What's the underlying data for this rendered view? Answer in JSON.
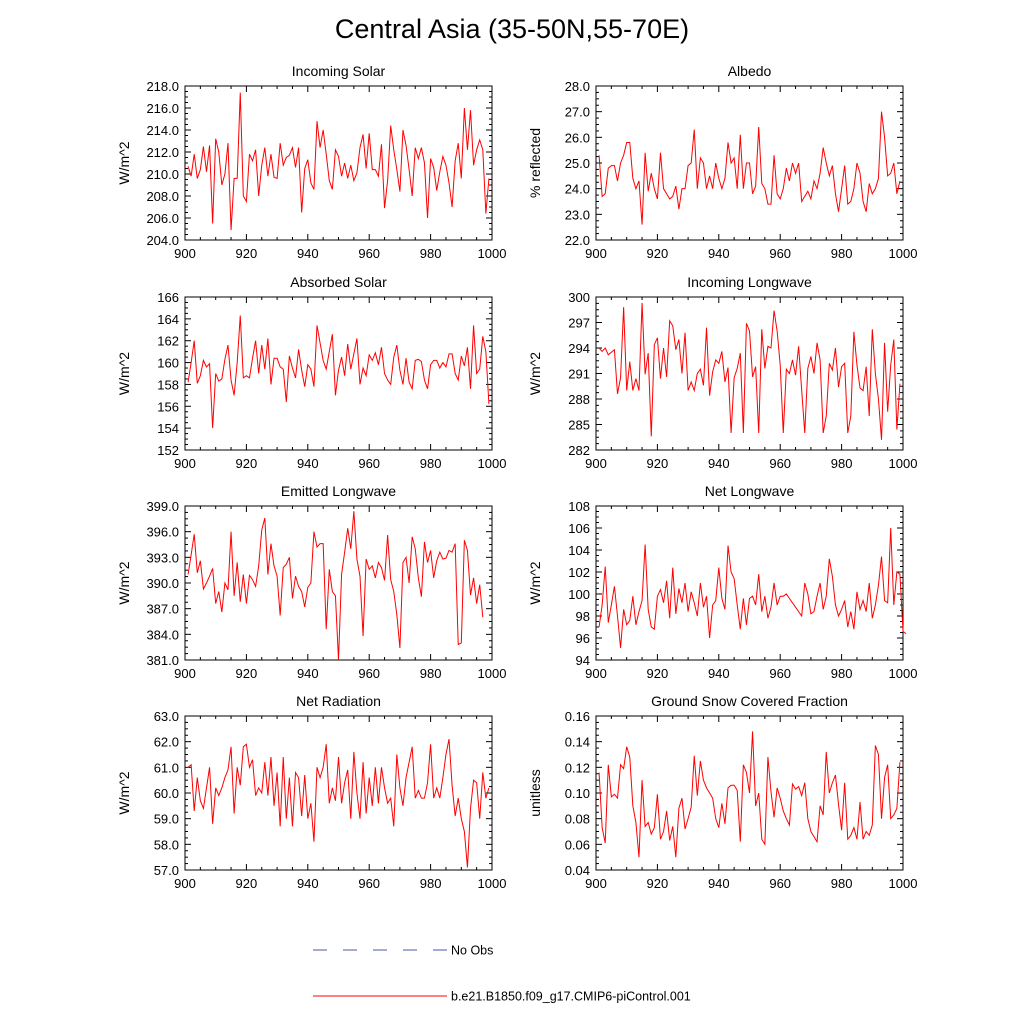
{
  "title": "Central Asia (35-50N,55-70E)",
  "legend": {
    "no_obs": "No Obs",
    "model": "b.e21.B1850.f09_g17.CMIP6-piControl.001",
    "obs_color": "#4a5aa8",
    "model_color": "#ff0000"
  },
  "chart_data": [
    {
      "type": "line",
      "title": "Incoming Solar",
      "ylabel": "W/m^2",
      "xlim": [
        900,
        1000
      ],
      "xticks": [
        "900",
        "920",
        "940",
        "960",
        "980",
        "1000"
      ],
      "ylim": [
        204,
        218
      ],
      "yticks": [
        "204.0",
        "206.0",
        "208.0",
        "210.0",
        "212.0",
        "214.0",
        "216.0",
        "218.0"
      ],
      "x_start": 901,
      "values": [
        210.7,
        209.8,
        211.8,
        209.6,
        210.4,
        212.5,
        210.2,
        212.6,
        205.5,
        213.2,
        212.0,
        209.0,
        210.0,
        212.8,
        204.9,
        209.6,
        209.6,
        217.4,
        208.0,
        207.5,
        211.8,
        211.2,
        212.2,
        208.0,
        210.8,
        212.4,
        209.8,
        211.8,
        209.7,
        209.6,
        212.8,
        210.8,
        211.5,
        211.7,
        212.4,
        210.6,
        212.4,
        206.5,
        210.5,
        211.3,
        209.2,
        208.6,
        214.8,
        212.4,
        214.0,
        211.8,
        209.4,
        208.6,
        212.2,
        211.6,
        209.8,
        211.0,
        209.6,
        210.8,
        209.4,
        210.1,
        212.4,
        213.6,
        210.5,
        213.7,
        210.4,
        210.4,
        209.8,
        212.7,
        206.9,
        209.4,
        214.4,
        212.2,
        210.4,
        208.4,
        214.0,
        212.6,
        210.4,
        208.0,
        212.4,
        211.4,
        212.4,
        211.0,
        206.0,
        211.4,
        210.6,
        208.5,
        210.2,
        211.6,
        210.8,
        209.2,
        207.0,
        211.2,
        212.8,
        209.6,
        216.0,
        212.2,
        215.8,
        210.8,
        212.2,
        213.1,
        212.2,
        206.4,
        209.6
      ]
    },
    {
      "type": "line",
      "title": "Albedo",
      "ylabel": "% reflected",
      "xlim": [
        900,
        1000
      ],
      "xticks": [
        "900",
        "920",
        "940",
        "960",
        "980",
        "1000"
      ],
      "ylim": [
        22,
        28
      ],
      "yticks": [
        "22.0",
        "23.0",
        "24.0",
        "25.0",
        "26.0",
        "27.0",
        "28.0"
      ],
      "x_start": 901,
      "values": [
        25.3,
        23.7,
        23.8,
        24.8,
        24.9,
        24.9,
        24.3,
        25.0,
        25.3,
        25.8,
        25.8,
        24.4,
        24.0,
        24.3,
        22.6,
        25.4,
        23.9,
        24.6,
        24.0,
        23.6,
        25.4,
        24.0,
        23.8,
        23.6,
        23.7,
        24.1,
        23.2,
        24.0,
        24.0,
        24.9,
        25.0,
        26.3,
        24.0,
        25.2,
        25.0,
        24.0,
        24.5,
        24.0,
        25.0,
        24.4,
        24.0,
        24.4,
        25.8,
        25.0,
        25.2,
        24.0,
        26.1,
        24.0,
        25.0,
        25.0,
        23.8,
        24.1,
        26.4,
        24.2,
        24.0,
        23.4,
        23.4,
        25.3,
        23.8,
        23.6,
        24.0,
        24.8,
        24.3,
        25.0,
        24.6,
        25.0,
        23.5,
        23.7,
        23.9,
        23.6,
        24.3,
        24.0,
        24.6,
        25.6,
        25.0,
        24.5,
        24.9,
        23.8,
        23.1,
        24.0,
        24.9,
        23.4,
        23.5,
        24.0,
        25.0,
        24.6,
        23.5,
        23.1,
        24.2,
        23.8,
        24.0,
        24.4,
        27.0,
        26.0,
        24.5,
        24.6,
        25.0,
        23.8,
        24.3
      ]
    },
    {
      "type": "line",
      "title": "Absorbed Solar",
      "ylabel": "W/m^2",
      "xlim": [
        900,
        1000
      ],
      "xticks": [
        "900",
        "920",
        "940",
        "960",
        "980",
        "1000"
      ],
      "ylim": [
        152,
        166
      ],
      "yticks": [
        "152",
        "154",
        "156",
        "158",
        "160",
        "162",
        "164",
        "166"
      ],
      "x_start": 901,
      "values": [
        158.2,
        160.0,
        162.0,
        158.1,
        158.8,
        160.2,
        159.6,
        159.9,
        154.0,
        159.0,
        158.3,
        158.5,
        160.3,
        161.6,
        158.4,
        157.0,
        160.0,
        164.3,
        158.6,
        158.8,
        158.6,
        160.4,
        162.0,
        159.0,
        161.6,
        159.4,
        162.2,
        158.0,
        160.4,
        160.4,
        159.6,
        159.4,
        156.4,
        160.6,
        159.5,
        158.6,
        161.2,
        159.3,
        157.8,
        159.8,
        159.4,
        157.8,
        163.4,
        161.8,
        160.2,
        159.4,
        161.0,
        162.6,
        157.0,
        159.3,
        160.5,
        158.8,
        161.7,
        159.4,
        160.8,
        162.2,
        158.0,
        159.5,
        158.8,
        160.7,
        160.2,
        160.9,
        159.8,
        161.4,
        159.0,
        158.4,
        158.0,
        160.5,
        161.6,
        159.3,
        158.0,
        160.4,
        158.2,
        157.6,
        160.2,
        160.3,
        160.1,
        158.4,
        157.6,
        159.8,
        160.2,
        160.2,
        159.5,
        160.0,
        159.6,
        160.8,
        160.8,
        159.0,
        158.4,
        160.6,
        159.7,
        161.4,
        157.6,
        163.4,
        159.0,
        159.4,
        162.4,
        161.0,
        156.2
      ]
    },
    {
      "type": "line",
      "title": "Incoming Longwave",
      "ylabel": "W/m^2",
      "xlim": [
        900,
        1000
      ],
      "xticks": [
        "900",
        "920",
        "940",
        "960",
        "980",
        "1000"
      ],
      "ylim": [
        282,
        300
      ],
      "yticks": [
        "282",
        "285",
        "288",
        "291",
        "294",
        "297",
        "300"
      ],
      "x_start": 901,
      "values": [
        294.0,
        293.6,
        294.0,
        293.2,
        293.5,
        293.8,
        288.6,
        290.5,
        298.8,
        289.0,
        292.4,
        289.0,
        290.4,
        289.0,
        299.3,
        290.9,
        293.4,
        283.6,
        294.4,
        295.2,
        290.4,
        294.0,
        290.6,
        297.2,
        296.6,
        293.8,
        295.0,
        291.0,
        295.8,
        289.0,
        290.0,
        289.0,
        291.0,
        291.5,
        289.6,
        296.4,
        288.4,
        291.2,
        292.6,
        292.2,
        293.6,
        290.0,
        291.7,
        284.0,
        290.5,
        291.6,
        293.4,
        284.0,
        296.9,
        296.0,
        290.6,
        291.8,
        284.0,
        296.2,
        291.6,
        294.2,
        294.0,
        298.4,
        296.0,
        292.0,
        284.0,
        291.5,
        291.0,
        292.6,
        290.8,
        294.2,
        289.0,
        284.0,
        291.6,
        293.0,
        291.0,
        294.6,
        292.6,
        284.0,
        286.0,
        292.2,
        291.4,
        294.0,
        289.4,
        291.8,
        292.2,
        284.0,
        286.0,
        295.9,
        292.0,
        289.3,
        289.0,
        291.8,
        286.0,
        296.2,
        291.0,
        288.0,
        283.2,
        294.6,
        286.5,
        292.0,
        295.0,
        284.4,
        289.8
      ]
    },
    {
      "type": "line",
      "title": "Emitted Longwave",
      "ylabel": "W/m^2",
      "xlim": [
        900,
        1000
      ],
      "xticks": [
        "900",
        "920",
        "940",
        "960",
        "980",
        "1000"
      ],
      "ylim": [
        381,
        399
      ],
      "yticks": [
        "381.0",
        "384.0",
        "387.0",
        "390.0",
        "393.0",
        "396.0",
        "399.0"
      ],
      "x_start": 901,
      "values": [
        391.0,
        393.3,
        395.7,
        391.2,
        392.6,
        389.3,
        390.0,
        390.8,
        391.7,
        387.6,
        389.0,
        386.6,
        390.0,
        389.2,
        396.0,
        388.5,
        392.4,
        387.8,
        391.0,
        387.6,
        390.9,
        390.4,
        389.6,
        392.0,
        396.2,
        397.6,
        391.0,
        394.6,
        392.0,
        390.8,
        386.2,
        391.8,
        392.2,
        393.0,
        388.2,
        390.8,
        389.6,
        389.0,
        387.2,
        389.5,
        390.0,
        396.0,
        394.2,
        394.6,
        394.6,
        384.6,
        391.6,
        389.0,
        388.5,
        381.0,
        391.0,
        393.6,
        396.4,
        394.0,
        398.4,
        392.8,
        390.8,
        383.8,
        392.8,
        391.6,
        392.0,
        390.6,
        392.4,
        391.8,
        390.3,
        395.6,
        390.4,
        389.0,
        386.3,
        382.4,
        392.4,
        393.0,
        390.0,
        395.4,
        394.0,
        390.6,
        388.4,
        394.8,
        392.4,
        393.8,
        390.6,
        392.6,
        393.6,
        392.8,
        392.9,
        393.8,
        393.6,
        394.6,
        382.8,
        383.0,
        395.0,
        393.8,
        388.6,
        390.6,
        387.6,
        389.8,
        386.0
      ]
    },
    {
      "type": "line",
      "title": "Net Longwave",
      "ylabel": "W/m^2",
      "xlim": [
        900,
        1000
      ],
      "xticks": [
        "900",
        "920",
        "940",
        "960",
        "980",
        "1000"
      ],
      "ylim": [
        94,
        108
      ],
      "yticks": [
        "94",
        "96",
        "98",
        "100",
        "102",
        "104",
        "106",
        "108"
      ],
      "x_start": 901,
      "values": [
        97.0,
        99.0,
        102.5,
        97.4,
        99.0,
        100.7,
        98.0,
        95.1,
        98.6,
        97.2,
        97.6,
        99.8,
        97.2,
        98.4,
        99.4,
        104.5,
        98.6,
        97.0,
        96.8,
        99.8,
        100.4,
        99.2,
        101.2,
        97.8,
        102.4,
        98.2,
        100.5,
        99.2,
        101.0,
        98.4,
        100.2,
        99.2,
        98.0,
        101.0,
        98.8,
        99.8,
        96.0,
        99.0,
        99.4,
        102.4,
        99.6,
        98.6,
        104.4,
        102.0,
        101.4,
        99.0,
        96.8,
        99.6,
        97.2,
        99.6,
        99.8,
        99.0,
        101.8,
        98.4,
        99.8,
        97.8,
        98.8,
        101.0,
        99.0,
        99.8,
        99.8,
        100.0,
        99.6,
        99.2,
        98.8,
        98.4,
        98.0,
        101.0,
        100.0,
        98.2,
        98.4,
        99.8,
        101.0,
        98.6,
        99.8,
        103.2,
        101.6,
        99.0,
        98.0,
        98.6,
        99.4,
        97.0,
        98.4,
        96.8,
        100.2,
        98.6,
        99.4,
        98.4,
        101.0,
        97.8,
        99.0,
        100.8,
        103.4,
        99.4,
        99.2,
        106.0,
        99.0,
        102.0,
        101.8,
        96.6,
        96.4
      ]
    },
    {
      "type": "line",
      "title": "Net Radiation",
      "ylabel": "W/m^2",
      "xlim": [
        900,
        1000
      ],
      "xticks": [
        "900",
        "920",
        "940",
        "960",
        "980",
        "1000"
      ],
      "ylim": [
        57,
        63
      ],
      "yticks": [
        "57.0",
        "58.0",
        "59.0",
        "60.0",
        "61.0",
        "62.0",
        "63.0"
      ],
      "x_start": 901,
      "values": [
        61.0,
        61.1,
        59.3,
        60.6,
        59.7,
        59.4,
        60.2,
        61.0,
        58.8,
        60.2,
        59.9,
        60.2,
        60.6,
        60.9,
        61.8,
        59.2,
        61.0,
        60.3,
        61.8,
        61.9,
        61.0,
        61.3,
        59.9,
        60.2,
        60.0,
        61.2,
        59.9,
        61.4,
        59.5,
        60.8,
        58.7,
        61.4,
        59.0,
        60.6,
        58.7,
        60.8,
        60.6,
        59.1,
        60.7,
        59.0,
        59.6,
        58.1,
        61.0,
        60.6,
        61.0,
        61.9,
        59.6,
        60.2,
        59.7,
        61.4,
        59.6,
        60.4,
        60.9,
        59.0,
        61.6,
        60.0,
        59.0,
        61.2,
        59.2,
        60.6,
        59.5,
        61.0,
        59.6,
        61.0,
        60.2,
        59.6,
        59.8,
        58.7,
        61.5,
        60.2,
        59.5,
        60.6,
        61.2,
        61.8,
        59.8,
        60.1,
        59.8,
        59.8,
        60.4,
        61.9,
        59.8,
        60.2,
        59.8,
        60.6,
        61.5,
        62.1,
        60.3,
        59.1,
        59.8,
        59.0,
        58.5,
        57.1,
        59.4,
        60.5,
        60.4,
        59.0,
        60.8,
        59.8,
        60.2
      ]
    },
    {
      "type": "line",
      "title": "Ground Snow Covered Fraction",
      "ylabel": "unitless",
      "xlim": [
        900,
        1000
      ],
      "xticks": [
        "900",
        "920",
        "940",
        "960",
        "980",
        "1000"
      ],
      "ylim": [
        0.04,
        0.16
      ],
      "yticks": [
        "0.04",
        "0.06",
        "0.08",
        "0.10",
        "0.12",
        "0.14",
        "0.16"
      ],
      "x_start": 901,
      "values": [
        0.116,
        0.073,
        0.061,
        0.122,
        0.097,
        0.099,
        0.096,
        0.122,
        0.119,
        0.136,
        0.128,
        0.09,
        0.077,
        0.05,
        0.11,
        0.074,
        0.077,
        0.068,
        0.073,
        0.099,
        0.064,
        0.07,
        0.086,
        0.063,
        0.074,
        0.05,
        0.088,
        0.096,
        0.072,
        0.08,
        0.089,
        0.129,
        0.098,
        0.125,
        0.11,
        0.104,
        0.1,
        0.096,
        0.08,
        0.073,
        0.092,
        0.076,
        0.104,
        0.106,
        0.106,
        0.102,
        0.062,
        0.122,
        0.116,
        0.1,
        0.148,
        0.09,
        0.1,
        0.064,
        0.06,
        0.128,
        0.101,
        0.081,
        0.104,
        0.096,
        0.086,
        0.08,
        0.075,
        0.107,
        0.103,
        0.105,
        0.098,
        0.108,
        0.08,
        0.07,
        0.066,
        0.062,
        0.09,
        0.083,
        0.132,
        0.1,
        0.108,
        0.114,
        0.091,
        0.071,
        0.108,
        0.064,
        0.067,
        0.073,
        0.064,
        0.093,
        0.064,
        0.07,
        0.067,
        0.075,
        0.137,
        0.13,
        0.08,
        0.112,
        0.122,
        0.08,
        0.083,
        0.088,
        0.124
      ]
    }
  ]
}
